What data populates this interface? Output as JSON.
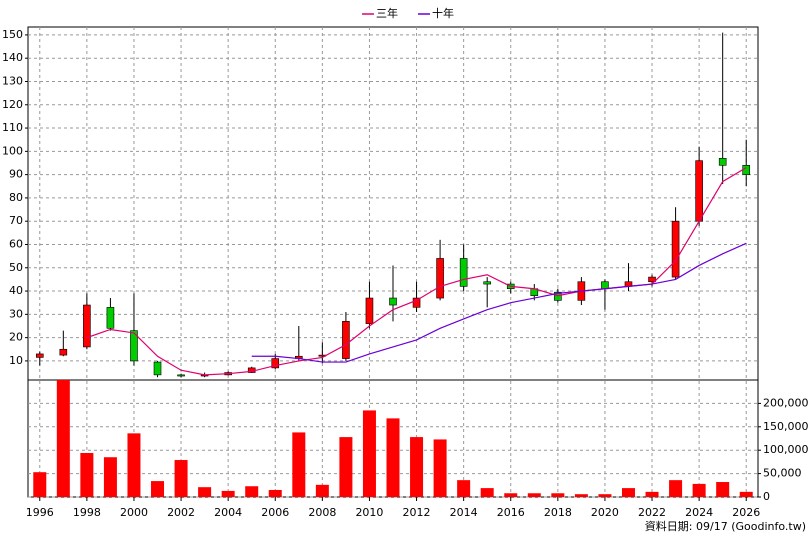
{
  "chart_data": [
    {
      "type": "candlestick",
      "x": [
        1996,
        1997,
        1998,
        1999,
        2000,
        2001,
        2002,
        2003,
        2004,
        2005,
        2006,
        2007,
        2008,
        2009,
        2010,
        2011,
        2012,
        2013,
        2014,
        2015,
        2016,
        2017,
        2018,
        2019,
        2020,
        2021,
        2022,
        2023,
        2024,
        2025,
        2026
      ],
      "open": [
        11.5,
        12.5,
        16,
        33,
        23,
        9.5,
        4,
        3.5,
        4,
        5,
        7,
        11,
        12,
        11,
        26,
        37,
        33,
        37,
        54,
        44,
        43,
        41,
        39.5,
        36,
        44,
        42,
        44,
        46,
        70,
        97,
        94
      ],
      "high": [
        14,
        23,
        39,
        37,
        39,
        10,
        4.5,
        5,
        5.5,
        7.5,
        13,
        25,
        18,
        31,
        44,
        51,
        44,
        62,
        60,
        46,
        44,
        43,
        41,
        46,
        45,
        52,
        47,
        76,
        102,
        151,
        105
      ],
      "low": [
        8,
        12,
        15,
        23,
        8,
        3,
        3,
        3,
        3.8,
        4.8,
        6.5,
        10,
        9,
        10,
        24,
        27,
        31,
        36,
        40,
        33,
        39,
        36,
        35,
        34,
        32,
        40,
        42,
        45,
        68,
        86,
        85
      ],
      "close": [
        13,
        15,
        34,
        24,
        10,
        4,
        3.5,
        4,
        5,
        7,
        11,
        12,
        12.5,
        27,
        37,
        34,
        37,
        54,
        42,
        43,
        41,
        38,
        36,
        44,
        41,
        44,
        46,
        70,
        96,
        94,
        90
      ],
      "up_color": "#ff0000",
      "down_color": "#00cc00",
      "series": [
        {
          "name": "三年",
          "color": "#e0006e",
          "values": [
            null,
            null,
            20,
            23.5,
            22,
            12,
            6,
            4,
            4.5,
            5.5,
            8,
            10,
            11.5,
            17,
            25,
            32,
            36,
            42,
            45,
            47,
            42,
            41,
            38,
            40,
            41,
            42,
            43,
            53,
            70,
            87,
            93
          ]
        },
        {
          "name": "十年",
          "color": "#6a00d8",
          "values": [
            null,
            null,
            null,
            null,
            null,
            null,
            null,
            null,
            null,
            12,
            12,
            11,
            9.5,
            9.5,
            13,
            16,
            19,
            24,
            28,
            32,
            35,
            37,
            39,
            40,
            41,
            42,
            43,
            45,
            51,
            56,
            60.5
          ]
        }
      ],
      "xlim": [
        1995.5,
        2026.5
      ],
      "ylim": [
        1.8,
        153.4
      ],
      "yticks": [
        10,
        20,
        30,
        40,
        50,
        60,
        70,
        80,
        90,
        100,
        110,
        120,
        130,
        140,
        150
      ],
      "grid": true
    },
    {
      "type": "bar",
      "x": [
        1996,
        1997,
        1998,
        1999,
        2000,
        2001,
        2002,
        2003,
        2004,
        2005,
        2006,
        2007,
        2008,
        2009,
        2010,
        2011,
        2012,
        2013,
        2014,
        2015,
        2016,
        2017,
        2018,
        2019,
        2020,
        2021,
        2022,
        2023,
        2024,
        2025,
        2026
      ],
      "values": [
        53000,
        250000,
        94000,
        85000,
        136000,
        34000,
        79000,
        21000,
        13000,
        23000,
        15000,
        138000,
        26000,
        128000,
        185000,
        168000,
        128000,
        123000,
        36000,
        19000,
        8000,
        8000,
        8000,
        6000,
        6000,
        19000,
        11000,
        36000,
        28000,
        32000,
        11000
      ],
      "color": "#ff0000",
      "xlim": [
        1995.5,
        2026.5
      ],
      "xticks": [
        1996,
        1998,
        2000,
        2002,
        2004,
        2006,
        2008,
        2010,
        2012,
        2014,
        2016,
        2018,
        2020,
        2022,
        2024,
        2026
      ],
      "ylim": [
        0,
        250000
      ],
      "yticks": [
        0,
        {
          "value": 50000,
          "label": "50,000"
        },
        {
          "value": 100000,
          "label": "100,000"
        },
        {
          "value": 150000,
          "label": "150,000"
        },
        {
          "value": 200000,
          "label": "200,000"
        }
      ],
      "grid": true,
      "note": "資料日期: 09/17 (Goodinfo.tw)"
    }
  ]
}
